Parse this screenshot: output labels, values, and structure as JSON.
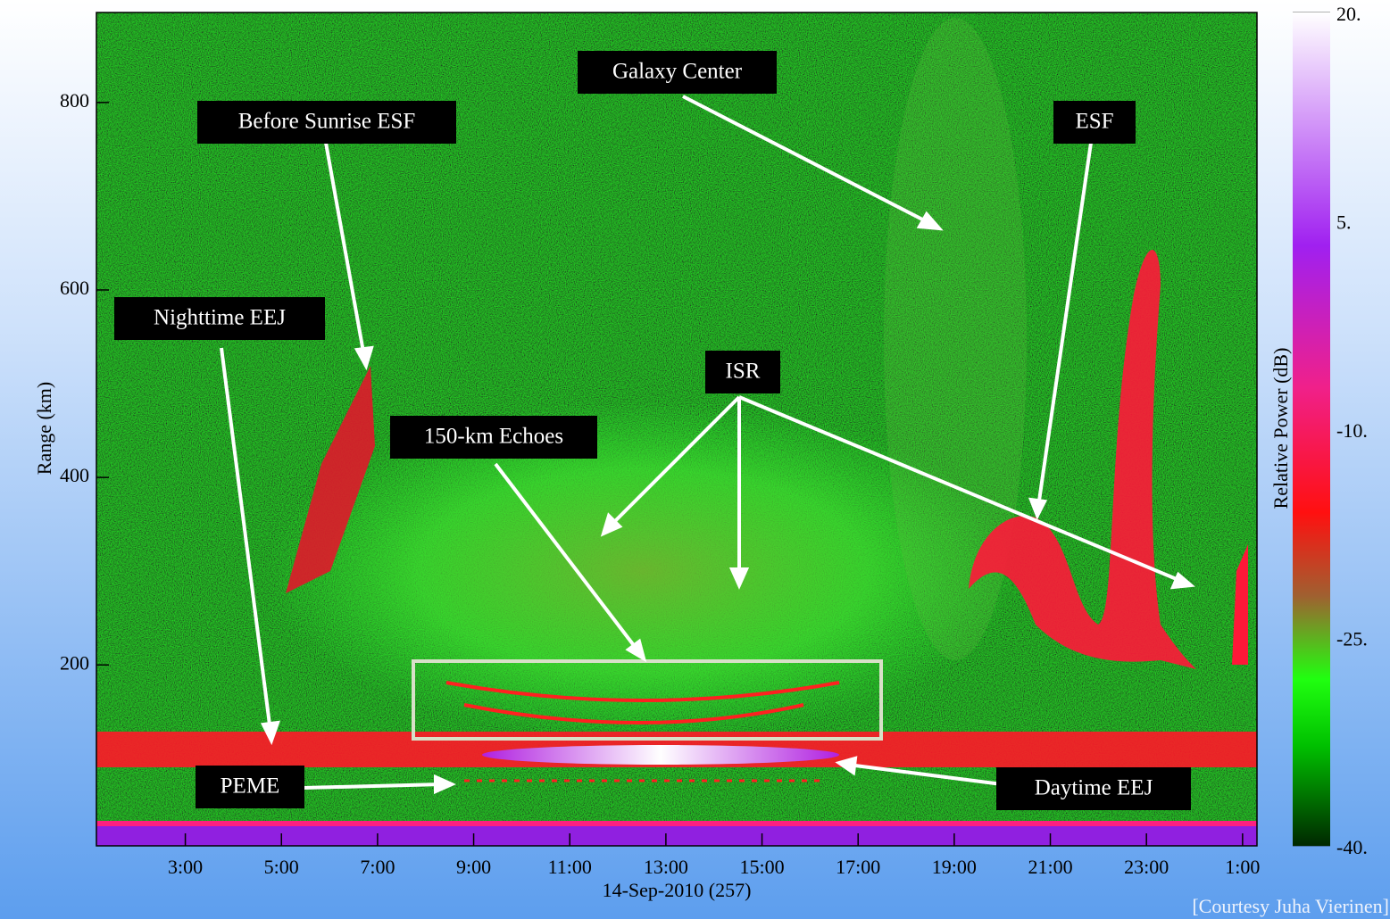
{
  "chart_data": {
    "type": "heatmap",
    "xlabel": "14-Sep-2010 (257)",
    "ylabel": "Range (km)",
    "xlim": [
      1.15,
      25.3
    ],
    "xticks": [
      {
        "value": 3,
        "label": "3:00"
      },
      {
        "value": 5,
        "label": "5:00"
      },
      {
        "value": 7,
        "label": "7:00"
      },
      {
        "value": 9,
        "label": "9:00"
      },
      {
        "value": 11,
        "label": "11:00"
      },
      {
        "value": 13,
        "label": "13:00"
      },
      {
        "value": 15,
        "label": "15:00"
      },
      {
        "value": 17,
        "label": "17:00"
      },
      {
        "value": 19,
        "label": "19:00"
      },
      {
        "value": 21,
        "label": "21:00"
      },
      {
        "value": 23,
        "label": "23:00"
      },
      {
        "value": 25,
        "label": "1:00"
      }
    ],
    "ylim": [
      7,
      896
    ],
    "yticks": [
      200,
      400,
      600,
      800
    ],
    "colorbar": {
      "label": "Relative Power (dB)",
      "lim": [
        -40,
        20
      ],
      "ticks": [
        {
          "value": 20,
          "label": "20."
        },
        {
          "value": 5,
          "label": "5."
        },
        {
          "value": -10,
          "label": "-10."
        },
        {
          "value": -25,
          "label": "-25."
        },
        {
          "value": -40,
          "label": "-40."
        }
      ]
    },
    "annotations": [
      "Galaxy Center",
      "Before Sunrise ESF",
      "ESF",
      "Nighttime EEJ",
      "ISR",
      "150-km Echoes",
      "PEME",
      "Daytime EEJ"
    ],
    "credit": "[Courtesy Juha Vierinen]"
  }
}
